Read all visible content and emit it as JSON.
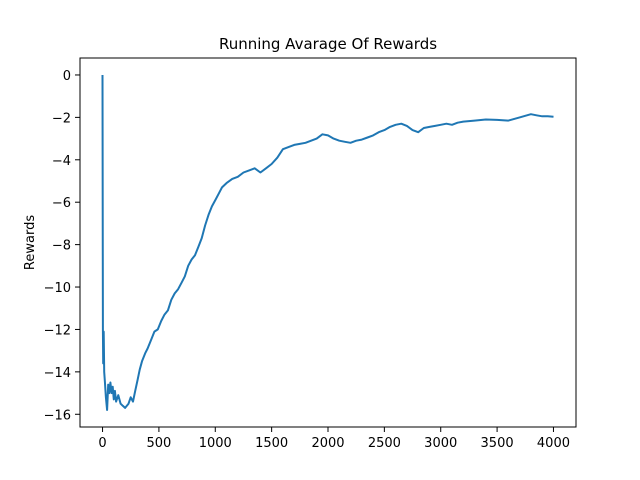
{
  "chart_data": {
    "type": "line",
    "title": "Running Avarage Of Rewards",
    "xlabel": "",
    "ylabel": "Rewards",
    "xlim": [
      -200,
      4200
    ],
    "ylim": [
      -16.6,
      0.8
    ],
    "x_ticks": [
      0,
      500,
      1000,
      1500,
      2000,
      2500,
      3000,
      3500,
      4000
    ],
    "y_ticks": [
      0,
      -2,
      -4,
      -6,
      -8,
      -10,
      -12,
      -14,
      -16
    ],
    "grid": false,
    "legend": "none",
    "series": [
      {
        "color": "#1f77b4",
        "points": [
          [
            0,
            0.0
          ],
          [
            3,
            -12.0
          ],
          [
            6,
            -13.6
          ],
          [
            10,
            -12.1
          ],
          [
            15,
            -14.0
          ],
          [
            20,
            -14.4
          ],
          [
            30,
            -15.2
          ],
          [
            40,
            -15.8
          ],
          [
            50,
            -14.6
          ],
          [
            60,
            -15.0
          ],
          [
            70,
            -14.5
          ],
          [
            80,
            -15.0
          ],
          [
            90,
            -14.7
          ],
          [
            100,
            -15.3
          ],
          [
            110,
            -14.9
          ],
          [
            120,
            -15.4
          ],
          [
            140,
            -15.1
          ],
          [
            160,
            -15.5
          ],
          [
            180,
            -15.6
          ],
          [
            200,
            -15.7
          ],
          [
            230,
            -15.5
          ],
          [
            250,
            -15.2
          ],
          [
            270,
            -15.4
          ],
          [
            290,
            -14.9
          ],
          [
            310,
            -14.4
          ],
          [
            330,
            -13.9
          ],
          [
            350,
            -13.5
          ],
          [
            380,
            -13.1
          ],
          [
            400,
            -12.9
          ],
          [
            430,
            -12.5
          ],
          [
            460,
            -12.1
          ],
          [
            490,
            -12.0
          ],
          [
            520,
            -11.6
          ],
          [
            550,
            -11.3
          ],
          [
            580,
            -11.1
          ],
          [
            610,
            -10.6
          ],
          [
            640,
            -10.3
          ],
          [
            670,
            -10.1
          ],
          [
            700,
            -9.8
          ],
          [
            730,
            -9.5
          ],
          [
            760,
            -9.0
          ],
          [
            790,
            -8.7
          ],
          [
            820,
            -8.5
          ],
          [
            850,
            -8.1
          ],
          [
            880,
            -7.7
          ],
          [
            910,
            -7.1
          ],
          [
            940,
            -6.6
          ],
          [
            970,
            -6.2
          ],
          [
            1000,
            -5.9
          ],
          [
            1030,
            -5.6
          ],
          [
            1060,
            -5.3
          ],
          [
            1100,
            -5.1
          ],
          [
            1150,
            -4.9
          ],
          [
            1200,
            -4.8
          ],
          [
            1250,
            -4.6
          ],
          [
            1300,
            -4.5
          ],
          [
            1350,
            -4.4
          ],
          [
            1400,
            -4.6
          ],
          [
            1450,
            -4.4
          ],
          [
            1500,
            -4.2
          ],
          [
            1550,
            -3.9
          ],
          [
            1600,
            -3.5
          ],
          [
            1650,
            -3.4
          ],
          [
            1700,
            -3.3
          ],
          [
            1750,
            -3.25
          ],
          [
            1800,
            -3.2
          ],
          [
            1850,
            -3.1
          ],
          [
            1900,
            -3.0
          ],
          [
            1950,
            -2.8
          ],
          [
            2000,
            -2.85
          ],
          [
            2050,
            -3.0
          ],
          [
            2100,
            -3.1
          ],
          [
            2150,
            -3.15
          ],
          [
            2200,
            -3.2
          ],
          [
            2250,
            -3.1
          ],
          [
            2300,
            -3.05
          ],
          [
            2350,
            -2.95
          ],
          [
            2400,
            -2.85
          ],
          [
            2450,
            -2.7
          ],
          [
            2500,
            -2.6
          ],
          [
            2550,
            -2.45
          ],
          [
            2600,
            -2.35
          ],
          [
            2650,
            -2.3
          ],
          [
            2700,
            -2.4
          ],
          [
            2750,
            -2.6
          ],
          [
            2800,
            -2.7
          ],
          [
            2850,
            -2.5
          ],
          [
            2900,
            -2.45
          ],
          [
            2950,
            -2.4
          ],
          [
            3000,
            -2.35
          ],
          [
            3050,
            -2.3
          ],
          [
            3100,
            -2.35
          ],
          [
            3150,
            -2.25
          ],
          [
            3200,
            -2.2
          ],
          [
            3300,
            -2.15
          ],
          [
            3400,
            -2.1
          ],
          [
            3500,
            -2.12
          ],
          [
            3600,
            -2.15
          ],
          [
            3700,
            -2.0
          ],
          [
            3800,
            -1.85
          ],
          [
            3850,
            -1.9
          ],
          [
            3900,
            -1.95
          ],
          [
            3950,
            -1.95
          ],
          [
            4000,
            -1.97
          ]
        ]
      }
    ]
  }
}
